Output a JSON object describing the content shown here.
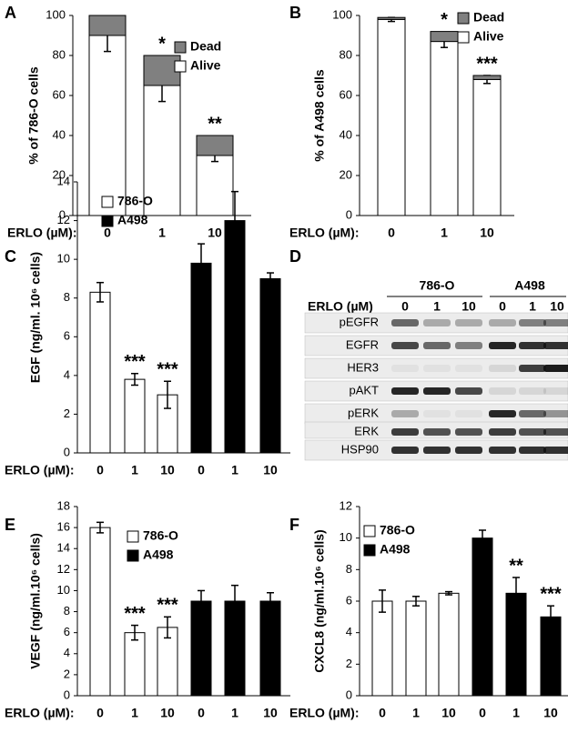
{
  "chart_data": [
    {
      "type": "stacked-bar",
      "panel": "A",
      "ylabel": "% of 786-O cells",
      "xlabel": "ERLO (µM):",
      "categories": [
        "0",
        "1",
        "10"
      ],
      "ylim": [
        0,
        100
      ],
      "yticks": [
        0,
        20,
        40,
        60,
        80,
        100
      ],
      "series": [
        {
          "name": "Alive",
          "color": "#ffffff",
          "values": [
            90,
            65,
            30
          ],
          "errors": [
            8,
            8,
            3
          ]
        },
        {
          "name": "Dead",
          "color": "#808080",
          "values": [
            10,
            15,
            10
          ]
        }
      ],
      "annotations": [
        null,
        "*",
        "**"
      ]
    },
    {
      "type": "stacked-bar",
      "panel": "B",
      "ylabel": "% of  A498 cells",
      "xlabel": "ERLO (µM):",
      "categories": [
        "0",
        "1",
        "10"
      ],
      "ylim": [
        0,
        100
      ],
      "yticks": [
        0,
        20,
        40,
        60,
        80,
        100
      ],
      "series": [
        {
          "name": "Alive",
          "color": "#ffffff",
          "values": [
            98,
            87,
            68
          ],
          "errors": [
            1,
            3,
            2
          ]
        },
        {
          "name": "Dead",
          "color": "#808080",
          "values": [
            1,
            5,
            2
          ]
        }
      ],
      "annotations": [
        null,
        "*",
        "***"
      ]
    },
    {
      "type": "bar",
      "panel": "C",
      "ylabel": "EGF (ng/ml. 10⁶ cells)",
      "xlabel": "ERLO (µM):",
      "categories": [
        "0",
        "1",
        "10",
        "0",
        "1",
        "10"
      ],
      "ylim": [
        0,
        14
      ],
      "yticks": [
        0,
        2,
        4,
        6,
        8,
        10,
        12,
        14
      ],
      "series": [
        {
          "name": "786-O",
          "color": "#ffffff",
          "values": [
            8.3,
            3.8,
            3.0,
            null,
            null,
            null
          ],
          "errors": [
            0.5,
            0.3,
            0.7,
            null,
            null,
            null
          ]
        },
        {
          "name": "A498",
          "color": "#000000",
          "values": [
            null,
            null,
            null,
            9.8,
            12,
            9
          ],
          "errors": [
            null,
            null,
            null,
            1.0,
            1.5,
            0.3
          ]
        }
      ],
      "annotations": [
        null,
        "***",
        "***",
        null,
        null,
        null
      ]
    },
    {
      "type": "bar",
      "panel": "E",
      "ylabel": "VEGF (ng/ml.10⁶ cells)",
      "xlabel": "ERLO (µM):",
      "categories": [
        "0",
        "1",
        "10",
        "0",
        "1",
        "10"
      ],
      "ylim": [
        0,
        18
      ],
      "yticks": [
        0,
        2,
        4,
        6,
        8,
        10,
        12,
        14,
        16,
        18
      ],
      "series": [
        {
          "name": "786-O",
          "color": "#ffffff",
          "values": [
            16,
            6,
            6.5,
            null,
            null,
            null
          ],
          "errors": [
            0.5,
            0.7,
            1.0,
            null,
            null,
            null
          ]
        },
        {
          "name": "A498",
          "color": "#000000",
          "values": [
            null,
            null,
            null,
            9,
            9,
            9
          ],
          "errors": [
            null,
            null,
            null,
            1.0,
            1.5,
            0.8
          ]
        }
      ],
      "annotations": [
        null,
        "***",
        "***",
        null,
        null,
        null
      ]
    },
    {
      "type": "bar",
      "panel": "F",
      "ylabel": "CXCL8 (ng/ml.10⁶ cells)",
      "xlabel": "ERLO (µM):",
      "categories": [
        "0",
        "1",
        "10",
        "0",
        "1",
        "10"
      ],
      "ylim": [
        0,
        12
      ],
      "yticks": [
        0,
        2,
        4,
        6,
        8,
        10,
        12
      ],
      "series": [
        {
          "name": "786-O",
          "color": "#ffffff",
          "values": [
            6,
            6,
            6.5,
            null,
            null,
            null
          ],
          "errors": [
            0.7,
            0.3,
            0.1,
            null,
            null,
            null
          ]
        },
        {
          "name": "A498",
          "color": "#000000",
          "values": [
            null,
            null,
            null,
            10,
            6.5,
            5
          ],
          "errors": [
            null,
            null,
            null,
            0.5,
            1.0,
            0.7
          ]
        }
      ],
      "annotations": [
        null,
        null,
        null,
        null,
        "**",
        "***"
      ]
    }
  ],
  "blot": {
    "panel": "D",
    "groups": [
      "786-O",
      "A498"
    ],
    "lane_label": "ERLO (µM)",
    "lanes": [
      "0",
      "1",
      "10",
      "0",
      "1",
      "10"
    ],
    "proteins": [
      "pEGFR",
      "EGFR",
      "HER3",
      "pAKT",
      "pERK",
      "ERK",
      "HSP90"
    ]
  }
}
